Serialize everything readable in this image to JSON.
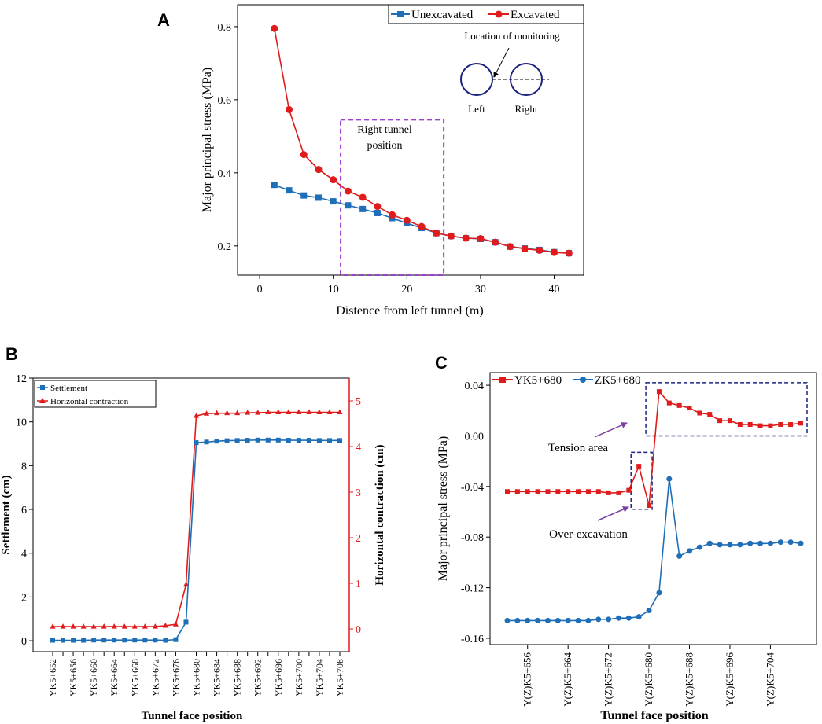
{
  "chart_data": [
    {
      "panel": "A",
      "type": "line",
      "xlabel": "Distence from left tunnel (m)",
      "ylabel": "Major principal stress (MPa)",
      "xlim": [
        -3,
        44
      ],
      "ylim": [
        0.12,
        0.86
      ],
      "xticks": [
        0,
        10,
        20,
        30,
        40
      ],
      "yticks": [
        0.2,
        0.4,
        0.6,
        0.8
      ],
      "ytick_labels": [
        "0.2",
        "0.4",
        "0.6",
        "0.8"
      ],
      "legend": "top-right",
      "x": [
        2,
        4,
        6,
        8,
        10,
        12,
        14,
        16,
        18,
        20,
        22,
        24,
        26,
        28,
        30,
        32,
        34,
        36,
        38,
        40,
        42
      ],
      "series": [
        {
          "name": "Unexcavated",
          "color": "#1f6fb8",
          "marker": "square",
          "values": [
            0.367,
            0.352,
            0.338,
            0.332,
            0.322,
            0.311,
            0.301,
            0.29,
            0.276,
            0.262,
            0.249,
            0.235,
            0.227,
            0.221,
            0.219,
            0.21,
            0.198,
            0.193,
            0.189,
            0.183,
            0.18
          ]
        },
        {
          "name": "Excavated",
          "color": "#e01b1b",
          "marker": "circle",
          "values": [
            0.795,
            0.573,
            0.45,
            0.409,
            0.381,
            0.35,
            0.333,
            0.308,
            0.285,
            0.27,
            0.253,
            0.235,
            0.227,
            0.221,
            0.22,
            0.21,
            0.198,
            0.192,
            0.188,
            0.182,
            0.18
          ]
        }
      ],
      "annotations": {
        "box_label_1": "Right tunnel",
        "box_label_2": "position",
        "box_x_range": [
          11,
          25
        ],
        "box_y_range": [
          0.12,
          0.545
        ],
        "monitor_label": "Location of monitoring",
        "left_label": "Left",
        "right_label": "Right"
      }
    },
    {
      "panel": "B",
      "type": "line",
      "xlabel": "Tunnel face position",
      "ylabel": "Settlement (cm)",
      "y2label": "Horizontal contraction (cm)",
      "ylim": [
        -0.5,
        12
      ],
      "y2lim": [
        -0.5,
        5.5
      ],
      "yticks": [
        0,
        2,
        4,
        6,
        8,
        10,
        12
      ],
      "y2ticks": [
        0,
        1,
        2,
        3,
        4,
        5
      ],
      "legend": "top-left",
      "categories": [
        "YK5+652",
        "YK5+654",
        "YK5+656",
        "YK5+658",
        "YK5+660",
        "YK5+662",
        "YK5+664",
        "YK5+666",
        "YK5+668",
        "YK5+670",
        "YK5+672",
        "YK5+674",
        "YK5+676",
        "YK5+678",
        "YK5+680",
        "YK5+682",
        "YK5+684",
        "YK5+686",
        "YK5+688",
        "YK5+690",
        "YK5+692",
        "YK5+694",
        "YK5+696",
        "YK5+698",
        "YK5+700",
        "YK5+702",
        "YK5+704",
        "YK5+706",
        "YK5+708"
      ],
      "tick_labels": [
        "YK5+652",
        "YK5+656",
        "YK5+660",
        "YK5+664",
        "YK5+668",
        "YK5+672",
        "YK5+676",
        "YK5+680",
        "YK5+684",
        "YK5+688",
        "YK5+692",
        "YK5+696",
        "YK5+700",
        "YK5+704",
        "YK5+708"
      ],
      "series": [
        {
          "name": "Settlement",
          "color": "#1f6fb8",
          "marker": "square",
          "axis": "left",
          "values": [
            0.02,
            0.02,
            0.02,
            0.02,
            0.03,
            0.03,
            0.03,
            0.03,
            0.03,
            0.03,
            0.03,
            0.02,
            0.05,
            0.85,
            9.05,
            9.08,
            9.12,
            9.14,
            9.15,
            9.16,
            9.17,
            9.17,
            9.17,
            9.16,
            9.16,
            9.16,
            9.15,
            9.15,
            9.15
          ]
        },
        {
          "name": "Horizontal contraction",
          "color": "#e01b1b",
          "marker": "triangle",
          "axis": "right",
          "values": [
            0.05,
            0.05,
            0.05,
            0.05,
            0.05,
            0.05,
            0.05,
            0.05,
            0.05,
            0.05,
            0.05,
            0.07,
            0.1,
            0.97,
            4.67,
            4.72,
            4.73,
            4.73,
            4.73,
            4.74,
            4.74,
            4.75,
            4.75,
            4.75,
            4.75,
            4.75,
            4.75,
            4.75,
            4.75
          ]
        }
      ]
    },
    {
      "panel": "C",
      "type": "line",
      "xlabel": "Tunnel face position",
      "ylabel": "Major principal stress (MPa)",
      "ylim": [
        -0.165,
        0.05
      ],
      "yticks": [
        -0.16,
        -0.12,
        -0.08,
        -0.04,
        0.0,
        0.04
      ],
      "ytick_labels": [
        "-0.16",
        "-0.12",
        "-0.08",
        "-0.04",
        "0.00",
        "0.04"
      ],
      "legend": "top-left",
      "categories": [
        "Y(Z)K5+652",
        "Y(Z)K5+654",
        "Y(Z)K5+656",
        "Y(Z)K5+658",
        "Y(Z)K5+660",
        "Y(Z)K5+662",
        "Y(Z)K5+664",
        "Y(Z)K5+666",
        "Y(Z)K5+668",
        "Y(Z)K5+670",
        "Y(Z)K5+672",
        "Y(Z)K5+674",
        "Y(Z)K5+676",
        "Y(Z)K5+678",
        "Y(Z)K5+680",
        "Y(Z)K5+682",
        "Y(Z)K5+684",
        "Y(Z)K5+686",
        "Y(Z)K5+688",
        "Y(Z)K5+690",
        "Y(Z)K5+692",
        "Y(Z)K5+694",
        "Y(Z)K5+696",
        "Y(Z)K5+698",
        "Y(Z)K5+700",
        "Y(Z)K5+702",
        "Y(Z)K5+704",
        "Y(Z)K5+706",
        "Y(Z)K5+708",
        "Y(Z)K5+710"
      ],
      "tick_labels": [
        "Y(Z)K5+656",
        "Y(Z)K5+664",
        "Y(Z)K5+672",
        "Y(Z)K5+680",
        "Y(Z)K5+688",
        "Y(Z)K5+696",
        "Y(Z)K5+704"
      ],
      "series": [
        {
          "name": "YK5+680",
          "color": "#e01b1b",
          "marker": "square",
          "values": [
            -0.044,
            -0.044,
            -0.044,
            -0.044,
            -0.044,
            -0.044,
            -0.044,
            -0.044,
            -0.044,
            -0.044,
            -0.045,
            -0.045,
            -0.043,
            -0.024,
            -0.055,
            0.035,
            0.026,
            0.024,
            0.022,
            0.018,
            0.017,
            0.012,
            0.012,
            0.009,
            0.009,
            0.008,
            0.008,
            0.009,
            0.009,
            0.01
          ]
        },
        {
          "name": "ZK5+680",
          "color": "#1f6fb8",
          "marker": "circle",
          "values": [
            -0.146,
            -0.146,
            -0.146,
            -0.146,
            -0.146,
            -0.146,
            -0.146,
            -0.146,
            -0.146,
            -0.145,
            -0.145,
            -0.144,
            -0.144,
            -0.143,
            -0.138,
            -0.124,
            -0.034,
            -0.095,
            -0.091,
            -0.088,
            -0.085,
            -0.086,
            -0.086,
            -0.086,
            -0.085,
            -0.085,
            -0.085,
            -0.084,
            -0.084,
            -0.085
          ]
        }
      ],
      "annotations": {
        "tension_label": "Tension area",
        "overexc_label": "Over-excavation"
      }
    }
  ]
}
